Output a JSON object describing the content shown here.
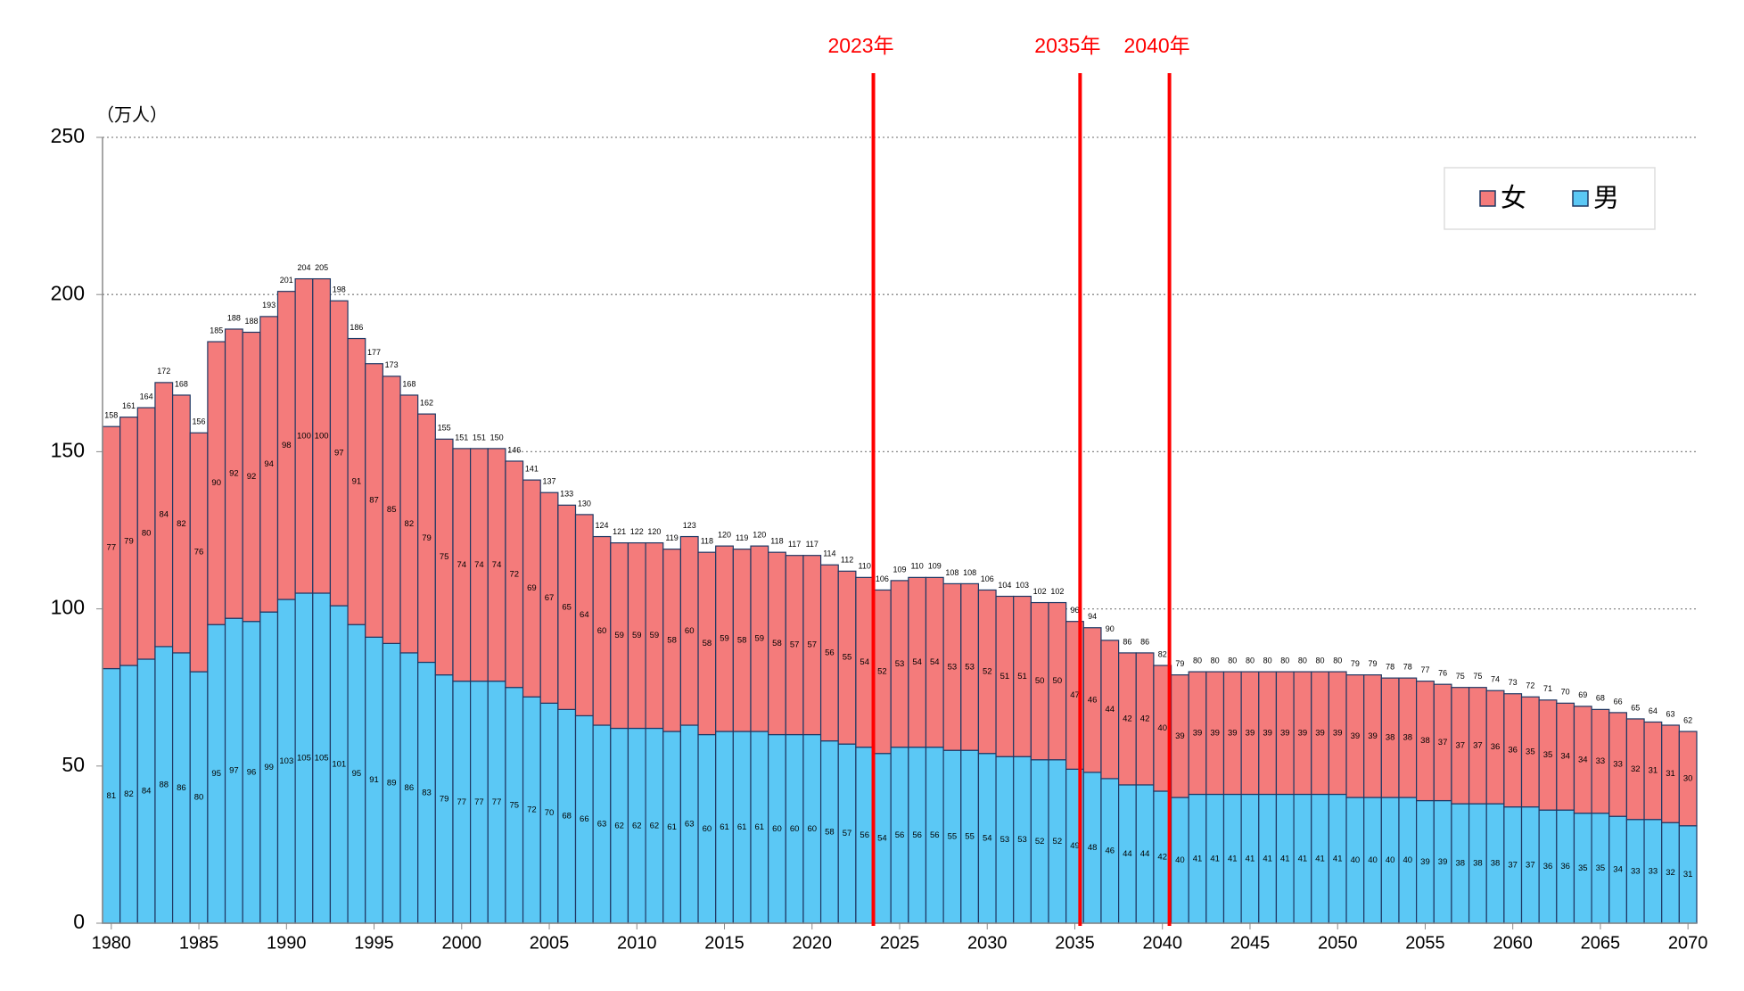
{
  "chart_data": {
    "type": "stacked_bar",
    "y_label": "（万人）",
    "x": [
      1980,
      1981,
      1982,
      1983,
      1984,
      1985,
      1986,
      1987,
      1988,
      1989,
      1990,
      1991,
      1992,
      1993,
      1994,
      1995,
      1996,
      1997,
      1998,
      1999,
      2000,
      2001,
      2002,
      2003,
      2004,
      2005,
      2006,
      2007,
      2008,
      2009,
      2010,
      2011,
      2012,
      2013,
      2014,
      2015,
      2016,
      2017,
      2018,
      2019,
      2020,
      2021,
      2022,
      2023,
      2024,
      2025,
      2026,
      2027,
      2028,
      2029,
      2030,
      2031,
      2032,
      2033,
      2034,
      2035,
      2036,
      2037,
      2038,
      2039,
      2040,
      2041,
      2042,
      2043,
      2044,
      2045,
      2046,
      2047,
      2048,
      2049,
      2050,
      2051,
      2052,
      2053,
      2054,
      2055,
      2056,
      2057,
      2058,
      2059,
      2060,
      2061,
      2062,
      2063,
      2064,
      2065,
      2066,
      2067,
      2068,
      2069,
      2070
    ],
    "series": [
      {
        "name": "女",
        "color": "#f47b7b",
        "values": [
          77,
          79,
          80,
          84,
          82,
          76,
          90,
          92,
          92,
          94,
          98,
          100,
          100,
          97,
          91,
          87,
          85,
          82,
          79,
          75,
          74,
          74,
          74,
          72,
          69,
          67,
          65,
          64,
          60,
          59,
          59,
          59,
          58,
          60,
          58,
          59,
          58,
          59,
          58,
          57,
          57,
          56,
          55,
          54,
          52,
          53,
          54,
          54,
          53,
          53,
          52,
          51,
          51,
          50,
          50,
          47,
          46,
          44,
          42,
          42,
          40,
          39,
          39,
          39,
          39,
          39,
          39,
          39,
          39,
          39,
          39,
          39,
          39,
          38,
          38,
          38,
          37,
          37,
          37,
          36,
          36,
          35,
          35,
          34,
          34,
          33,
          33,
          32,
          31,
          31,
          30
        ]
      },
      {
        "name": "男",
        "color": "#5bc8f5",
        "values": [
          81,
          82,
          84,
          88,
          86,
          80,
          95,
          97,
          96,
          99,
          103,
          105,
          105,
          101,
          95,
          91,
          89,
          86,
          83,
          79,
          77,
          77,
          77,
          75,
          72,
          70,
          68,
          66,
          63,
          62,
          62,
          62,
          61,
          63,
          60,
          61,
          61,
          61,
          60,
          60,
          60,
          58,
          57,
          56,
          54,
          56,
          56,
          56,
          55,
          55,
          54,
          53,
          53,
          52,
          52,
          49,
          48,
          46,
          44,
          44,
          42,
          40,
          41,
          41,
          41,
          41,
          41,
          41,
          41,
          41,
          41,
          40,
          40,
          40,
          40,
          39,
          39,
          38,
          38,
          38,
          37,
          37,
          36,
          36,
          35,
          35,
          34,
          33,
          33,
          32,
          31
        ]
      }
    ],
    "totals": [
      158,
      161,
      164,
      172,
      168,
      156,
      185,
      188,
      188,
      193,
      201,
      204,
      205,
      198,
      186,
      177,
      173,
      168,
      162,
      155,
      151,
      151,
      150,
      146,
      141,
      137,
      133,
      130,
      124,
      121,
      122,
      120,
      119,
      123,
      118,
      120,
      119,
      120,
      118,
      117,
      117,
      114,
      112,
      110,
      106,
      109,
      110,
      109,
      108,
      108,
      106,
      104,
      103,
      102,
      102,
      96,
      94,
      90,
      86,
      86,
      82,
      79,
      80,
      80,
      80,
      80,
      80,
      80,
      80,
      80,
      80,
      79,
      79,
      78,
      78,
      77,
      76,
      75,
      75,
      74,
      73,
      72,
      71,
      70,
      69,
      68,
      66,
      65,
      64,
      63,
      62
    ],
    "annotations": [
      {
        "x": 2023.5,
        "label": "2023年"
      },
      {
        "x": 2035.3,
        "label": "2035年"
      },
      {
        "x": 2040.4,
        "label": "2040年"
      }
    ],
    "annotation_color": "#ff0000",
    "xlim": [
      1979.5,
      2070.5
    ],
    "xticks": [
      1980,
      1985,
      1990,
      1995,
      2000,
      2005,
      2010,
      2015,
      2020,
      2025,
      2030,
      2035,
      2040,
      2045,
      2050,
      2055,
      2060,
      2065,
      2070
    ],
    "ylim": [
      0,
      250
    ],
    "yticks": [
      0,
      50,
      100,
      150,
      200,
      250
    ],
    "grid": true,
    "legend": "upper right"
  }
}
